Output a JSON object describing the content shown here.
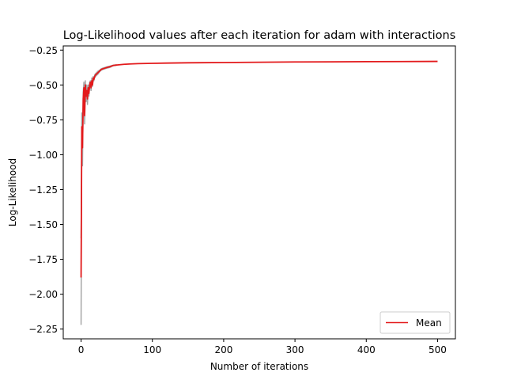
{
  "chart_data": {
    "type": "line",
    "title": "Log-Likelihood values after each iteration for adam with interactions",
    "xlabel": "Number of iterations",
    "ylabel": "Log-Likelihood",
    "xlim": [
      -25,
      525
    ],
    "ylim": [
      -2.32,
      -0.22
    ],
    "xticks": [
      0,
      100,
      200,
      300,
      400,
      500
    ],
    "yticks": [
      -2.25,
      -2.0,
      -1.75,
      -1.5,
      -1.25,
      -1.0,
      -0.75,
      -0.5,
      -0.25
    ],
    "grid": false,
    "legend": {
      "position": "lower-right",
      "entries": [
        "Mean"
      ]
    },
    "colors": {
      "mean": "#e31a1c",
      "runs": "#808080"
    },
    "series": [
      {
        "name": "Mean",
        "x": [
          0,
          1,
          2,
          3,
          4,
          5,
          6,
          7,
          8,
          9,
          10,
          11,
          12,
          13,
          14,
          15,
          16,
          17,
          18,
          19,
          20,
          22,
          24,
          26,
          28,
          30,
          33,
          36,
          40,
          45,
          50,
          60,
          70,
          80,
          100,
          120,
          150,
          200,
          250,
          300,
          350,
          400,
          450,
          500
        ],
        "y": [
          -1.88,
          -0.8,
          -0.95,
          -0.6,
          -0.52,
          -0.72,
          -0.5,
          -0.58,
          -0.54,
          -0.6,
          -0.52,
          -0.56,
          -0.5,
          -0.48,
          -0.52,
          -0.47,
          -0.5,
          -0.45,
          -0.46,
          -0.44,
          -0.43,
          -0.42,
          -0.41,
          -0.4,
          -0.39,
          -0.385,
          -0.38,
          -0.375,
          -0.37,
          -0.36,
          -0.357,
          -0.352,
          -0.349,
          -0.347,
          -0.345,
          -0.343,
          -0.341,
          -0.339,
          -0.337,
          -0.335,
          -0.334,
          -0.333,
          -0.332,
          -0.331
        ]
      },
      {
        "x": [
          0,
          1,
          2,
          3,
          4,
          5,
          6,
          7,
          8,
          9,
          10,
          11,
          12,
          13,
          14,
          15,
          16,
          17,
          18,
          19,
          20,
          22,
          24,
          26,
          28,
          30,
          33,
          36,
          40,
          45,
          50
        ],
        "y": [
          -2.22,
          -0.7,
          -1.08,
          -0.55,
          -0.48,
          -0.78,
          -0.47,
          -0.62,
          -0.5,
          -0.64,
          -0.5,
          -0.58,
          -0.48,
          -0.5,
          -0.54,
          -0.45,
          -0.49,
          -0.44,
          -0.47,
          -0.43,
          -0.42,
          -0.41,
          -0.4,
          -0.395,
          -0.385,
          -0.38,
          -0.375,
          -0.37,
          -0.365,
          -0.358,
          -0.355
        ]
      },
      {
        "x": [
          0,
          1,
          2,
          3,
          4,
          5,
          6,
          7,
          8,
          9,
          10,
          11,
          12,
          13,
          14,
          15,
          16,
          17,
          18,
          19,
          20,
          22,
          24,
          26,
          28,
          30,
          33,
          36,
          40,
          45,
          50
        ],
        "y": [
          -1.6,
          -0.88,
          -0.82,
          -0.66,
          -0.56,
          -0.66,
          -0.53,
          -0.55,
          -0.57,
          -0.56,
          -0.54,
          -0.54,
          -0.52,
          -0.47,
          -0.5,
          -0.49,
          -0.51,
          -0.46,
          -0.45,
          -0.45,
          -0.44,
          -0.43,
          -0.42,
          -0.405,
          -0.395,
          -0.39,
          -0.385,
          -0.38,
          -0.375,
          -0.362,
          -0.359
        ]
      }
    ]
  }
}
